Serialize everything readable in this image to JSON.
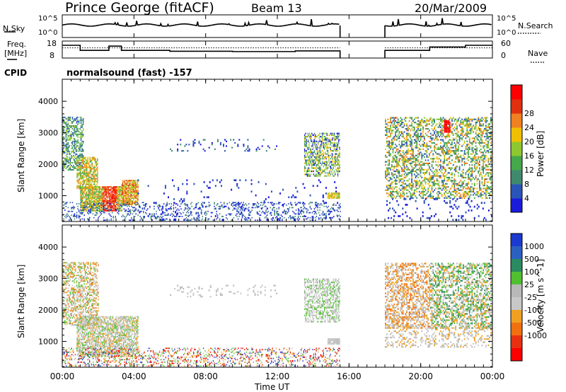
{
  "header": {
    "station": "Prince George (fitACF)",
    "beam": "Beam 13",
    "date": "20/Mar/2009"
  },
  "noise_panel": {
    "left_label": "N.Sky",
    "right_label": "N.Search",
    "left_ticks": [
      "10^5",
      "10^0"
    ],
    "right_ticks": [
      "10^5",
      "10^0"
    ]
  },
  "freq_panel": {
    "left_label_1": "Freq.",
    "left_label_2": "[MHz]",
    "right_label": "Nave",
    "left_ticks": [
      "18",
      "8"
    ],
    "right_ticks": [
      "60",
      "0"
    ]
  },
  "cpid": {
    "label": "CPID",
    "program": "normalsound (fast) -157"
  },
  "x_axis": {
    "label": "Time UT",
    "ticks": [
      "00:00",
      "04:00",
      "08:00",
      "12:00",
      "16:00",
      "20:00",
      "00:00"
    ]
  },
  "power_panel": {
    "ylabel": "Slant Range [km]",
    "yticks": [
      "1000",
      "2000",
      "3000",
      "4000"
    ],
    "colorbar_label": "Power [dB]",
    "colorbar_ticks": [
      "4",
      "8",
      "12",
      "16",
      "20",
      "24",
      "28"
    ],
    "colors": [
      "#1a1adc",
      "#2a55b8",
      "#3f8a6e",
      "#45a84a",
      "#8ec830",
      "#f0c000",
      "#f08020",
      "#e03010",
      "#ff0000"
    ]
  },
  "velocity_panel": {
    "ylabel": "Slant Range [km]",
    "yticks": [
      "1000",
      "2000",
      "3000",
      "4000"
    ],
    "colorbar_label": "Velocity [m s^-1]",
    "colorbar_ticks": [
      "1000",
      "500",
      "100",
      "25",
      "-25",
      "-100",
      "-500",
      "-1000"
    ],
    "colors": [
      "#1a3ad0",
      "#2a60c0",
      "#2a8a60",
      "#50c030",
      "#b8b8b8",
      "#c8c8c8",
      "#f0a020",
      "#f07010",
      "#e83010",
      "#ff0000"
    ]
  },
  "chart_data": {
    "type": "heatmap",
    "title": "Prince George (fitACF) Beam 13 20/Mar/2009",
    "xlabel": "Time UT",
    "ylabel": "Slant Range [km]",
    "xlim": [
      "00:00",
      "24:00"
    ],
    "ylim": [
      180,
      4700
    ],
    "data_gap_ut": [
      "15:30",
      "18:00"
    ],
    "power_db_range": [
      0,
      32
    ],
    "velocity_range_m_s": [
      -1000,
      1000
    ],
    "freq_mhz_range": [
      8,
      18
    ],
    "nave_range": [
      0,
      60
    ]
  }
}
